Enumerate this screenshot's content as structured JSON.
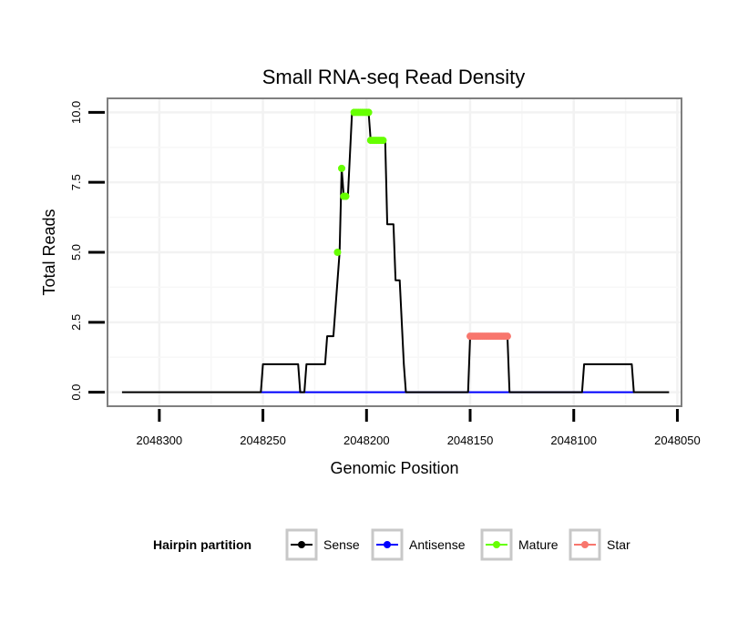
{
  "chart_data": {
    "type": "line",
    "title": "Small RNA-seq Read Density",
    "xlabel": "Genomic Position",
    "ylabel": "Total Reads",
    "x_reversed": true,
    "xlim": [
      2048325,
      2048048
    ],
    "ylim": [
      -0.5,
      10.5
    ],
    "x_ticks": [
      2048300,
      2048250,
      2048200,
      2048150,
      2048100,
      2048050
    ],
    "y_ticks": [
      {
        "value": 0,
        "label": "0.0"
      },
      {
        "value": 2.5,
        "label": "2.5"
      },
      {
        "value": 5,
        "label": "5.0"
      },
      {
        "value": 7.5,
        "label": "7.5"
      },
      {
        "value": 10,
        "label": "10.0"
      }
    ],
    "grid": true,
    "legend": {
      "title": "Hairpin partition",
      "position": "bottom",
      "entries": [
        {
          "label": "Sense",
          "color": "#000000"
        },
        {
          "label": "Antisense",
          "color": "#0000FF"
        },
        {
          "label": "Mature",
          "color": "#66FF00"
        },
        {
          "label": "Star",
          "color": "#F8766D"
        }
      ]
    },
    "series": [
      {
        "name": "Sense",
        "color": "#000000",
        "points": [
          [
            2048318,
            0
          ],
          [
            2048251,
            0
          ],
          [
            2048250,
            1
          ],
          [
            2048233,
            1
          ],
          [
            2048232,
            0
          ],
          [
            2048230,
            0
          ],
          [
            2048229,
            1
          ],
          [
            2048220,
            1
          ],
          [
            2048219,
            2
          ],
          [
            2048216,
            2
          ],
          [
            2048213,
            5
          ],
          [
            2048212,
            8
          ],
          [
            2048211,
            7
          ],
          [
            2048209,
            7
          ],
          [
            2048207,
            10
          ],
          [
            2048199,
            10
          ],
          [
            2048198,
            9
          ],
          [
            2048191,
            9
          ],
          [
            2048190,
            6
          ],
          [
            2048187,
            6
          ],
          [
            2048186,
            4
          ],
          [
            2048184,
            4
          ],
          [
            2048182,
            1
          ],
          [
            2048181,
            0
          ],
          [
            2048151,
            0
          ],
          [
            2048150,
            2
          ],
          [
            2048132,
            2
          ],
          [
            2048131,
            0
          ],
          [
            2048096,
            0
          ],
          [
            2048095,
            1
          ],
          [
            2048072,
            1
          ],
          [
            2048071,
            0
          ],
          [
            2048054,
            0
          ]
        ]
      },
      {
        "name": "Antisense",
        "color": "#0000FF",
        "points": [
          [
            2048251,
            0
          ],
          [
            2048071,
            0
          ]
        ]
      },
      {
        "name": "Mature",
        "color": "#66FF00",
        "points": [
          [
            2048214,
            5
          ],
          [
            2048212,
            8
          ],
          [
            2048211,
            7
          ],
          [
            2048210,
            7
          ],
          [
            2048206,
            10
          ],
          [
            2048205,
            10
          ],
          [
            2048204,
            10
          ],
          [
            2048203,
            10
          ],
          [
            2048202,
            10
          ],
          [
            2048201,
            10
          ],
          [
            2048200,
            10
          ],
          [
            2048199,
            10
          ],
          [
            2048198,
            9
          ],
          [
            2048197,
            9
          ],
          [
            2048196,
            9
          ],
          [
            2048195,
            9
          ],
          [
            2048194,
            9
          ],
          [
            2048193,
            9
          ],
          [
            2048192,
            9
          ]
        ]
      },
      {
        "name": "Star",
        "color": "#F8766D",
        "points": [
          [
            2048150,
            2
          ],
          [
            2048149,
            2
          ],
          [
            2048148,
            2
          ],
          [
            2048147,
            2
          ],
          [
            2048146,
            2
          ],
          [
            2048145,
            2
          ],
          [
            2048144,
            2
          ],
          [
            2048143,
            2
          ],
          [
            2048142,
            2
          ],
          [
            2048141,
            2
          ],
          [
            2048140,
            2
          ],
          [
            2048139,
            2
          ],
          [
            2048138,
            2
          ],
          [
            2048137,
            2
          ],
          [
            2048136,
            2
          ],
          [
            2048135,
            2
          ],
          [
            2048134,
            2
          ],
          [
            2048133,
            2
          ],
          [
            2048132,
            2
          ]
        ]
      }
    ]
  }
}
